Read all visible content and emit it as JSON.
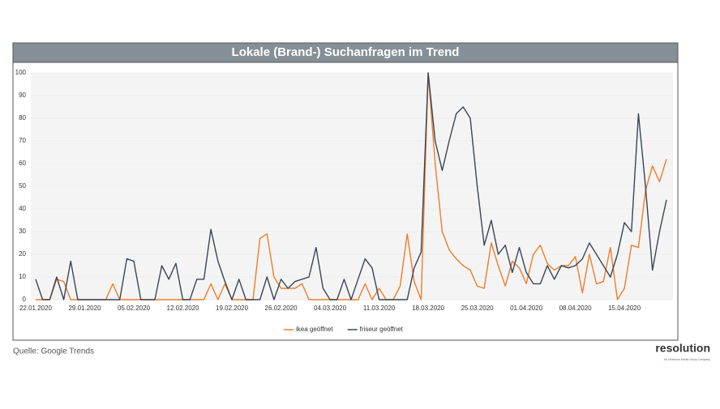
{
  "chart_data": {
    "type": "line",
    "title": "Lokale (Brand-) Suchanfragen im Trend",
    "source": "Quelle: Google Trends",
    "logo": "resolution",
    "logo_subtitle": "An Omnicom Media Group Company",
    "categories": [
      "22.01.2020",
      null,
      null,
      null,
      null,
      null,
      null,
      "29.01.2020",
      null,
      null,
      null,
      null,
      null,
      null,
      "05.02.2020",
      null,
      null,
      null,
      null,
      null,
      null,
      "12.02.2020",
      null,
      null,
      null,
      null,
      null,
      null,
      "19.02.2020",
      null,
      null,
      null,
      null,
      null,
      null,
      "26.02.2020",
      null,
      null,
      null,
      null,
      null,
      null,
      "04.03.2020",
      null,
      null,
      null,
      null,
      null,
      null,
      "11.03.2020",
      null,
      null,
      null,
      null,
      null,
      null,
      "18.03.2020",
      null,
      null,
      null,
      null,
      null,
      null,
      "25.03.2020",
      null,
      null,
      null,
      null,
      null,
      null,
      "01.04.2020",
      null,
      null,
      null,
      null,
      null,
      null,
      "08.04.2020",
      null,
      null,
      null,
      null,
      null,
      null,
      "15.04.2020",
      null,
      null,
      null,
      null,
      null,
      null
    ],
    "series": [
      {
        "name": "ikea geöffnet",
        "color": "#ee7d2b",
        "values": [
          0,
          0,
          0,
          9,
          8,
          0,
          0,
          0,
          0,
          0,
          0,
          7,
          0,
          0,
          0,
          0,
          0,
          0,
          0,
          0,
          0,
          0,
          0,
          0,
          0,
          7,
          0,
          7,
          0,
          0,
          0,
          0,
          27,
          29,
          10,
          5,
          5,
          5,
          7,
          0,
          0,
          0,
          0,
          0,
          0,
          0,
          0,
          7,
          0,
          5,
          0,
          0,
          6,
          29,
          8,
          0,
          100,
          60,
          30,
          22,
          18,
          15,
          13,
          6,
          5,
          25,
          15,
          6,
          17,
          14,
          7,
          20,
          24,
          16,
          13,
          15,
          15,
          19,
          3,
          20,
          7,
          8,
          23,
          0,
          5,
          24,
          23,
          48,
          59,
          52,
          62
        ]
      },
      {
        "name": "friseur geöffnet",
        "color": "#3a4556",
        "values": [
          9,
          0,
          0,
          10,
          0,
          17,
          0,
          0,
          0,
          0,
          0,
          0,
          0,
          18,
          17,
          0,
          0,
          0,
          15,
          9,
          16,
          0,
          0,
          9,
          9,
          31,
          17,
          8,
          0,
          9,
          0,
          0,
          0,
          10,
          0,
          9,
          5,
          8,
          9,
          10,
          23,
          5,
          0,
          0,
          9,
          0,
          9,
          18,
          14,
          0,
          0,
          0,
          0,
          0,
          14,
          21,
          100,
          70,
          57,
          70,
          82,
          85,
          80,
          50,
          24,
          35,
          20,
          24,
          12,
          23,
          12,
          7,
          7,
          15,
          9,
          15,
          14,
          15,
          18,
          25,
          20,
          15,
          10,
          20,
          34,
          30,
          82,
          50,
          13,
          30,
          44
        ]
      }
    ],
    "ylim": [
      0,
      100
    ],
    "yticks": [
      0,
      10,
      20,
      30,
      40,
      50,
      60,
      70,
      80,
      90,
      100
    ],
    "grid": true,
    "legend": "bottom"
  }
}
